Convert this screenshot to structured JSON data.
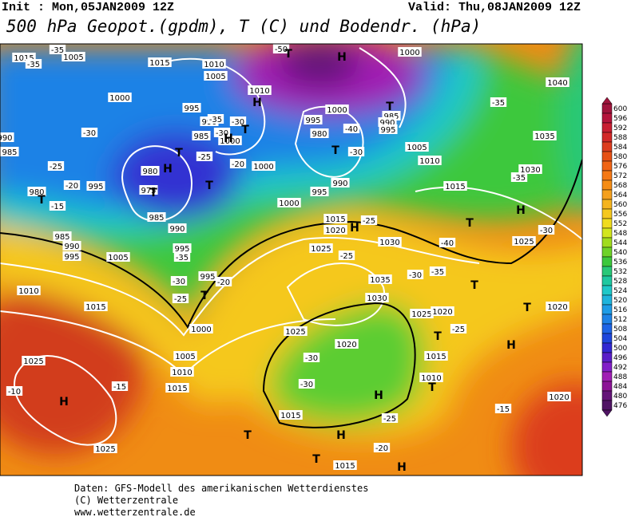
{
  "header": {
    "init": "Init : Mon,05JAN2009 12Z",
    "valid": "Valid: Thu,08JAN2009 12Z",
    "title": "500 hPa Geopot.(gpdm), T (C) und Bodendr. (hPa)"
  },
  "colorbar": {
    "values": [
      600,
      596,
      592,
      588,
      584,
      580,
      576,
      572,
      568,
      564,
      560,
      556,
      552,
      548,
      544,
      540,
      536,
      532,
      528,
      524,
      520,
      516,
      512,
      508,
      504,
      500,
      496,
      492,
      488,
      484,
      480,
      476
    ],
    "colors": [
      "#a0143c",
      "#b4143c",
      "#c81e32",
      "#d22828",
      "#dc3c1e",
      "#e65014",
      "#f06414",
      "#f57814",
      "#f58c14",
      "#f5a01e",
      "#f5b41e",
      "#f5c81e",
      "#f0dc1e",
      "#d2e61e",
      "#a0dc1e",
      "#6ed228",
      "#3cc83c",
      "#28c878",
      "#1ec8a0",
      "#1ec8c8",
      "#1eb4dc",
      "#1e9ce6",
      "#1e82e6",
      "#1e64e6",
      "#1e46dc",
      "#3228d2",
      "#5a1ec8",
      "#821ec8",
      "#a01eb4",
      "#8c1496",
      "#641478",
      "#501464"
    ]
  },
  "map": {
    "pressure_labels": [
      1015,
      1005,
      1015,
      1010,
      1005,
      1010,
      1000,
      995,
      990,
      985,
      1000,
      1000,
      995,
      980,
      975,
      985,
      990,
      980,
      985,
      990,
      995,
      1005,
      995,
      995,
      1000,
      1005,
      1010,
      1015,
      1015,
      1010,
      1025,
      1025,
      1000,
      995,
      980,
      985,
      990,
      995,
      1005,
      1010,
      990,
      995,
      1000,
      1015,
      1020,
      1025,
      1030,
      1035,
      1030,
      1025,
      1020,
      1025,
      1020,
      1015,
      1010,
      1015,
      1015,
      1020,
      1020,
      1025,
      1030,
      1035,
      1040,
      1015,
      1000,
      985,
      990
    ],
    "temperature_labels": [
      -35,
      -35,
      -30,
      -25,
      -20,
      -15,
      -35,
      -30,
      -25,
      -20,
      -30,
      -25,
      -20,
      -35,
      -40,
      -30,
      -25,
      -25,
      -30,
      -35,
      -40,
      -35,
      -35,
      -30,
      -25,
      -30,
      -30,
      -25,
      -20,
      -15,
      -15,
      -10,
      -50,
      -30
    ],
    "centers": [
      "T",
      "H",
      "H",
      "T",
      "T",
      "H",
      "T",
      "T",
      "H",
      "T",
      "T",
      "T",
      "H",
      "T",
      "T",
      "T",
      "T",
      "H",
      "T",
      "T",
      "H",
      "T",
      "H",
      "T",
      "H",
      "H",
      "H"
    ]
  },
  "footer": {
    "lines": [
      "Daten: GFS-Modell des amerikanischen Wetterdienstes",
      "(C) Wetterzentrale",
      "www.wetterzentrale.de"
    ]
  }
}
